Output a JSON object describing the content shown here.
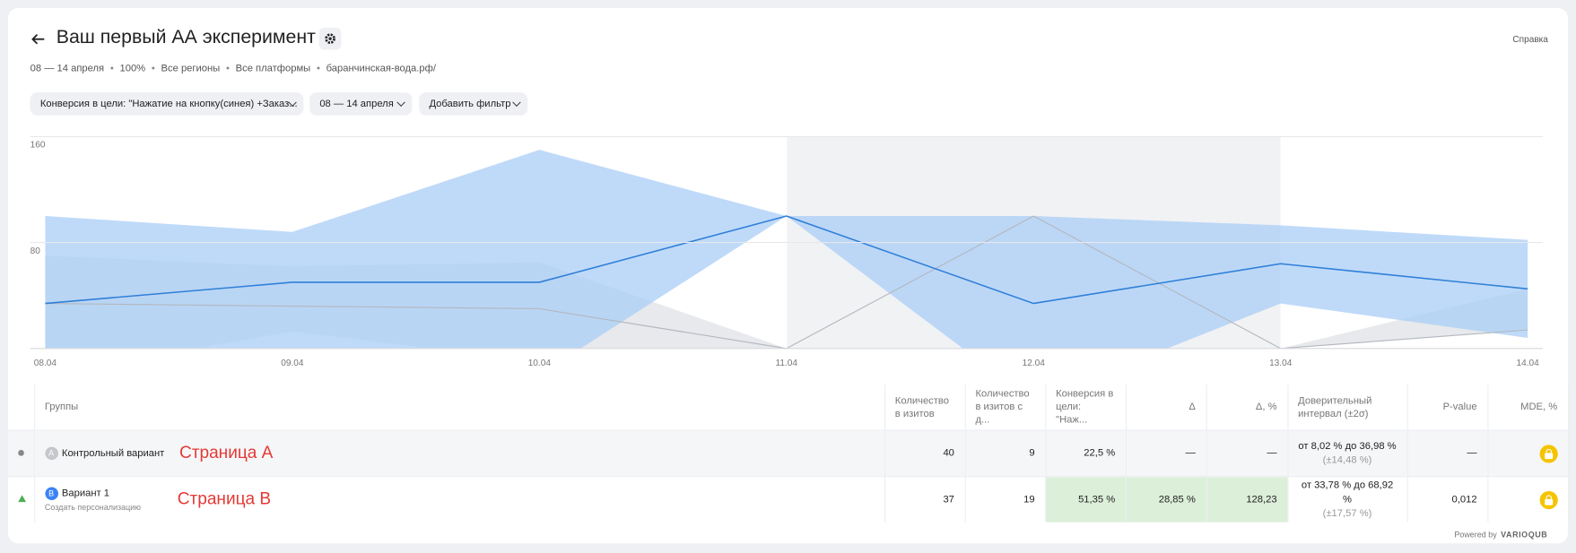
{
  "header": {
    "title": "Ваш первый АА эксперимент",
    "help": "Справка",
    "meta": [
      "08 — 14 апреля",
      "100%",
      "Все регионы",
      "Все платформы",
      "баранчинская-вода.рф/"
    ]
  },
  "filters": [
    "Конверсия в цели: \"Нажатие на кнопку(синея) +Заказ...",
    "08 — 14 апреля",
    "Добавить фильтр"
  ],
  "chart_data": {
    "type": "line",
    "categories": [
      "08.04",
      "09.04",
      "10.04",
      "11.04",
      "12.04",
      "13.04",
      "14.04"
    ],
    "ylim": [
      0,
      160
    ],
    "yticks": [
      80,
      160
    ],
    "grid": true,
    "series": [
      {
        "color": "#b3b7be",
        "band_color": "#dfe1e5",
        "values": [
          34,
          32,
          30,
          0,
          100,
          0,
          14
        ],
        "lower": [
          -20,
          13,
          -10,
          0,
          100,
          0,
          14
        ],
        "upper": [
          70,
          62,
          65,
          0,
          100,
          0,
          45
        ]
      },
      {
        "color": "#2f7fd8",
        "band_color": "#a9cdf7",
        "values": [
          34,
          50,
          50,
          100,
          34,
          64,
          45
        ],
        "lower": [
          -30,
          -20,
          -20,
          100,
          -40,
          34,
          8
        ],
        "upper": [
          100,
          88,
          150,
          100,
          100,
          93,
          82
        ]
      }
    ]
  },
  "table": {
    "columns": [
      "Группы",
      "Количество в изитов",
      "Количество в изитов с д...",
      "Конверсия в цели: \"Наж...",
      "Δ",
      "Δ, %",
      "Доверительный интервал (±2σ)",
      "P-value",
      "MDE, %"
    ],
    "rows": [
      {
        "badge": "A",
        "name": "Контрольный вариант",
        "note": "Страница А",
        "visits": 40,
        "visits_goal": 9,
        "conversion": "22,5 %",
        "delta": "—",
        "delta_pct": "—",
        "interval": "от 8,02 % до 36,98 %",
        "margin": "(±14,48 %)",
        "p_value": "—"
      },
      {
        "badge": "B",
        "name": "Вариант 1",
        "sub": "Создать персонализацию",
        "note": "Страница В",
        "visits": 37,
        "visits_goal": 19,
        "conversion": "51,35 %",
        "delta": "28,85 %",
        "delta_pct": "128,23",
        "interval": "от 33,78 % до 68,92 %",
        "margin": "(±17,57 %)",
        "p_value": "0,012"
      }
    ]
  },
  "footer": {
    "powered": "Powered by",
    "brand": "VARIOQUB"
  }
}
